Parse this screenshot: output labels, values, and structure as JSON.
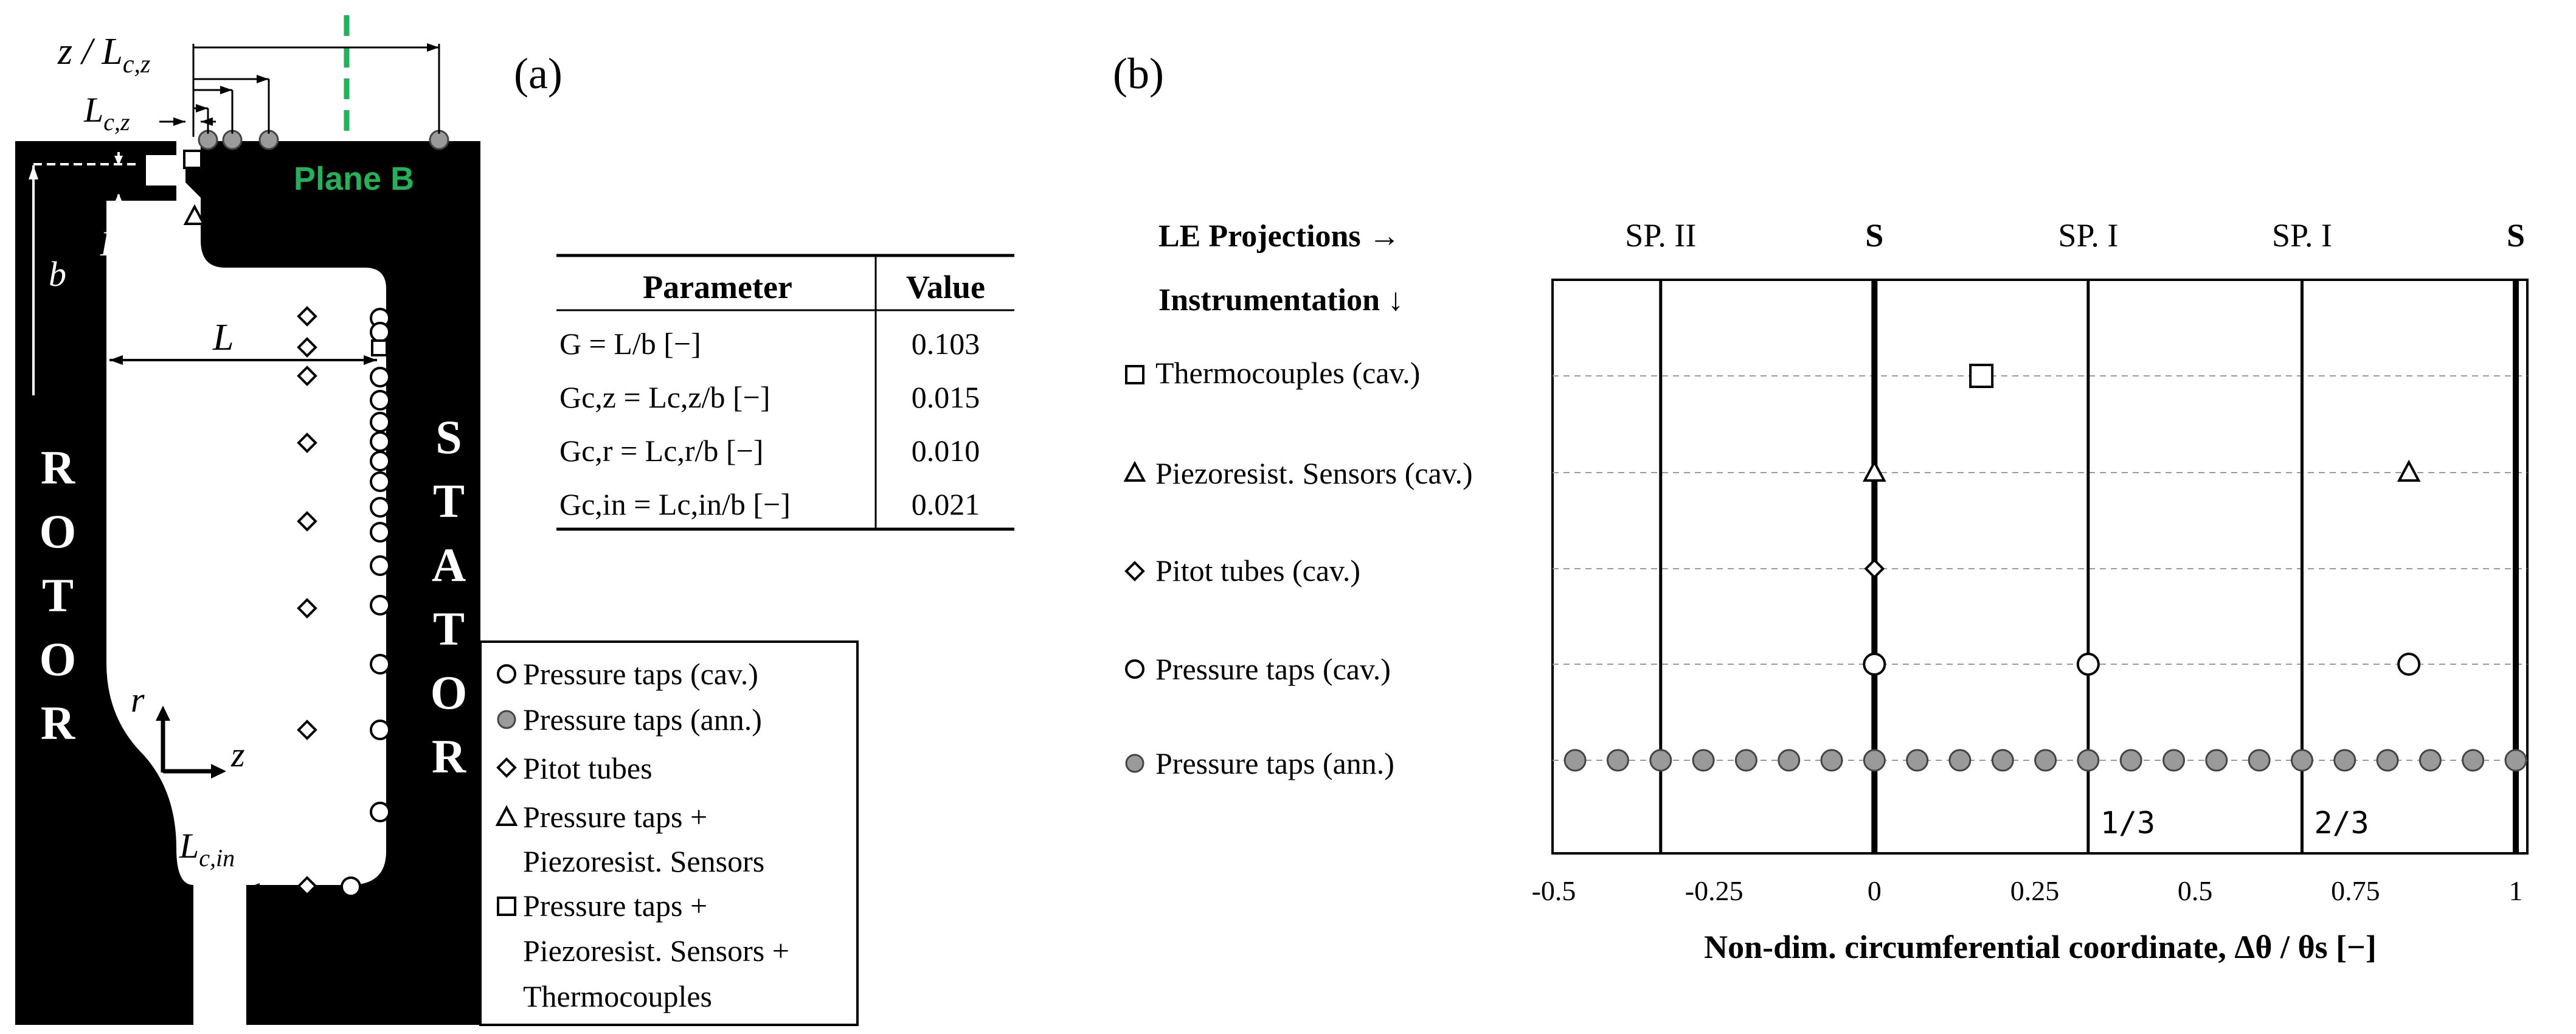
{
  "panel_a": {
    "label": "(a)",
    "rotor_text": "ROTOR",
    "stator_text": "STATOR",
    "plane_label": "Plane B",
    "dim_labels": {
      "z_over_Lcz": "z / L",
      "z_over_Lcz_sub": "c,z",
      "Lcz": "L",
      "Lcz_sub": "c,z",
      "Lcr": "L",
      "Lcr_sub": "c,r",
      "b": "b",
      "L": "L",
      "Lcin": "L",
      "Lcin_sub": "c,in",
      "r": "r",
      "z": "z"
    },
    "table": {
      "headers": [
        "Parameter",
        "Value"
      ],
      "rows": [
        {
          "param": "G = L/b [−]",
          "value": "0.103"
        },
        {
          "param": "Gc,z = Lc,z/b [−]",
          "value": "0.015"
        },
        {
          "param": "Gc,r = Lc,r/b [−]",
          "value": "0.010"
        },
        {
          "param": "Gc,in = Lc,in/b [−]",
          "value": "0.021"
        }
      ]
    },
    "legend": [
      {
        "symbol": "circle-open",
        "lines": [
          "Pressure taps (cav.)"
        ]
      },
      {
        "symbol": "circle-filled",
        "lines": [
          "Pressure taps (ann.)"
        ]
      },
      {
        "symbol": "diamond",
        "lines": [
          "Pitot tubes"
        ]
      },
      {
        "symbol": "triangle",
        "lines": [
          "Pressure taps +",
          "Piezoresist. Sensors"
        ]
      },
      {
        "symbol": "square",
        "lines": [
          "Pressure taps +",
          "Piezoresist. Sensors +",
          "Thermocouples"
        ]
      }
    ]
  },
  "panel_b": {
    "label": "(b)",
    "le_projections_label": "LE Projections →",
    "instrumentation_label": "Instrumentation ↓",
    "chart_data": {
      "type": "scatter",
      "xlabel": "Non-dim. circumferential coordinate, Δθ / θs [−]",
      "xlim": [
        -0.5,
        1.0
      ],
      "x_ticks": [
        "-0.5",
        "-0.25",
        "0",
        "0.25",
        "0.5",
        "0.75",
        "1"
      ],
      "x_tick_values": [
        -0.5,
        -0.25,
        0,
        0.25,
        0.5,
        0.75,
        1.0
      ],
      "vertical_lines": [
        {
          "x": -0.3333,
          "label": "SP. II",
          "bold": false
        },
        {
          "x": 0,
          "label": "S",
          "bold": true
        },
        {
          "x": 0.3333,
          "label": "SP. I",
          "bold": false
        },
        {
          "x": 0.6667,
          "label": "SP. I",
          "bold": false
        },
        {
          "x": 1.0,
          "label": "S",
          "bold": true
        }
      ],
      "fraction_labels": [
        {
          "x": 0.3333,
          "text": "1/3"
        },
        {
          "x": 0.6667,
          "text": "2/3"
        }
      ],
      "series": [
        {
          "name": "Thermocouples (cav.)",
          "symbol": "square",
          "x": [
            0.1667
          ]
        },
        {
          "name": "Piezoresist. Sensors (cav.)",
          "symbol": "triangle",
          "x": [
            0,
            0.8333
          ]
        },
        {
          "name": "Pitot tubes (cav.)",
          "symbol": "diamond",
          "x": [
            0
          ]
        },
        {
          "name": "Pressure taps (cav.)",
          "symbol": "circle-open",
          "x": [
            0,
            0.3333,
            0.8333
          ]
        },
        {
          "name": "Pressure taps (ann.)",
          "symbol": "circle-filled",
          "x": [
            -0.4667,
            -0.4,
            -0.3333,
            -0.2667,
            -0.2,
            -0.1333,
            -0.0667,
            0,
            0.0667,
            0.1333,
            0.2,
            0.2667,
            0.3333,
            0.4,
            0.4667,
            0.5333,
            0.6,
            0.6667,
            0.7333,
            0.8,
            0.8667,
            0.9333,
            1.0
          ]
        }
      ]
    }
  },
  "colors": {
    "black": "#000000",
    "green": "#1fb45a",
    "grey_fill": "#9a9a9a",
    "grid": "#9a9a9a"
  }
}
